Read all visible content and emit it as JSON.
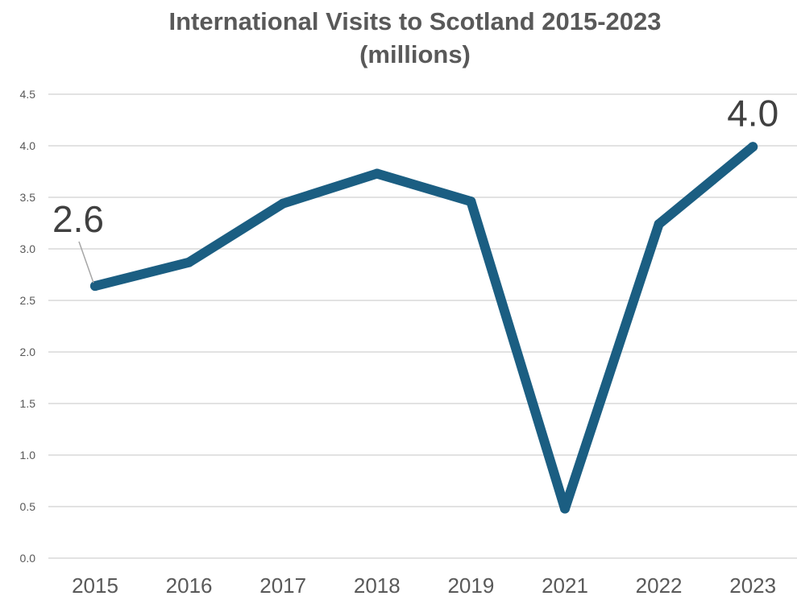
{
  "chart_data": {
    "type": "line",
    "title": "International Visits to Scotland 2015-2023",
    "subtitle": "(millions)",
    "xlabel": "",
    "ylabel": "",
    "categories": [
      "2015",
      "2016",
      "2017",
      "2018",
      "2019",
      "2021",
      "2022",
      "2023"
    ],
    "series": [
      {
        "values": [
          2.64,
          2.87,
          3.44,
          3.73,
          3.46,
          0.48,
          3.24,
          3.99
        ]
      }
    ],
    "ylim": [
      0,
      4.5
    ],
    "yticks": [
      "0.0",
      "0.5",
      "1.0",
      "1.5",
      "2.0",
      "2.5",
      "3.0",
      "3.5",
      "4.0",
      "4.5"
    ],
    "grid": true,
    "legend": "none",
    "data_labels": [
      {
        "category": "2015",
        "text": "2.6"
      },
      {
        "category": "2023",
        "text": "4.0"
      }
    ],
    "colors": {
      "line": "#1b5e82",
      "grid": "#d9d9d9",
      "text": "#595959"
    }
  }
}
